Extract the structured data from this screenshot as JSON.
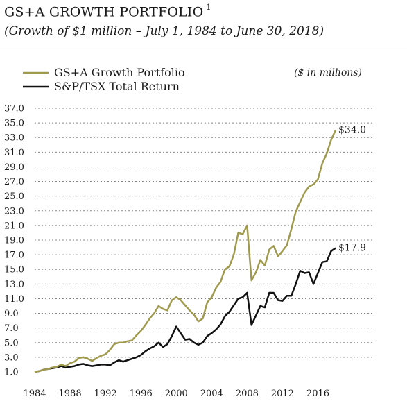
{
  "colors": {
    "portfolio": "#a09a4e",
    "index": "#111111",
    "grid": "#888888"
  },
  "chart_data": {
    "type": "line",
    "title": "GS+A GROWTH PORTFOLIO",
    "title_footnote": "1",
    "subtitle": "(Growth of $1 million – July 1, 1984 to June 30, 2018)",
    "units_label": "($ in millions)",
    "xlabel": "",
    "ylabel": "",
    "xlim": [
      1984.0,
      2018.0
    ],
    "ylim": [
      1.0,
      37.0
    ],
    "grid": true,
    "legend_position": "top-left",
    "x_ticks": [
      {
        "value": 1984,
        "label": "1984"
      },
      {
        "value": 1988,
        "label": "1988"
      },
      {
        "value": 1992,
        "label": "1992"
      },
      {
        "value": 1996,
        "label": "1996"
      },
      {
        "value": 2000,
        "label": "2000"
      },
      {
        "value": 2004,
        "label": "2004"
      },
      {
        "value": 2008,
        "label": "2008"
      },
      {
        "value": 2012,
        "label": "2012"
      },
      {
        "value": 2016,
        "label": "2016"
      }
    ],
    "y_ticks": [
      {
        "value": 1.0,
        "label": "1.0"
      },
      {
        "value": 3.0,
        "label": "3.0"
      },
      {
        "value": 5.0,
        "label": "5.0"
      },
      {
        "value": 7.0,
        "label": "7.0"
      },
      {
        "value": 9.0,
        "label": "9.0"
      },
      {
        "value": 11.0,
        "label": "11.0"
      },
      {
        "value": 13.0,
        "label": "13.0"
      },
      {
        "value": 15.0,
        "label": "15.0"
      },
      {
        "value": 17.0,
        "label": "17.0"
      },
      {
        "value": 19.0,
        "label": "19.0"
      },
      {
        "value": 21.0,
        "label": "21.0"
      },
      {
        "value": 23.0,
        "label": "23.0"
      },
      {
        "value": 25.0,
        "label": "25.0"
      },
      {
        "value": 27.0,
        "label": "27.0"
      },
      {
        "value": 29.0,
        "label": "29.0"
      },
      {
        "value": 31.0,
        "label": "31.0"
      },
      {
        "value": 33.0,
        "label": "33.0"
      },
      {
        "value": 35.0,
        "label": "35.0"
      },
      {
        "value": 37.0,
        "label": "37.0"
      }
    ],
    "series": [
      {
        "name": "GS+A Growth Portfolio",
        "color": "#a09a4e",
        "end_label": "$34.0",
        "points": [
          [
            1984.0,
            1.0
          ],
          [
            1984.5,
            1.1
          ],
          [
            1985.0,
            1.3
          ],
          [
            1985.5,
            1.4
          ],
          [
            1986.0,
            1.6
          ],
          [
            1986.5,
            1.7
          ],
          [
            1987.0,
            2.0
          ],
          [
            1987.5,
            1.8
          ],
          [
            1988.0,
            2.2
          ],
          [
            1988.5,
            2.4
          ],
          [
            1989.0,
            2.9
          ],
          [
            1989.5,
            3.0
          ],
          [
            1990.0,
            2.8
          ],
          [
            1990.5,
            2.5
          ],
          [
            1991.0,
            2.9
          ],
          [
            1991.5,
            3.2
          ],
          [
            1992.0,
            3.4
          ],
          [
            1992.5,
            4.0
          ],
          [
            1993.0,
            4.8
          ],
          [
            1993.5,
            5.0
          ],
          [
            1994.0,
            5.0
          ],
          [
            1994.5,
            5.2
          ],
          [
            1995.0,
            5.3
          ],
          [
            1995.5,
            6.0
          ],
          [
            1996.0,
            6.6
          ],
          [
            1996.5,
            7.4
          ],
          [
            1997.0,
            8.3
          ],
          [
            1997.5,
            9.0
          ],
          [
            1998.0,
            10.0
          ],
          [
            1998.5,
            9.6
          ],
          [
            1999.0,
            9.4
          ],
          [
            1999.5,
            10.8
          ],
          [
            2000.0,
            11.2
          ],
          [
            2000.5,
            10.8
          ],
          [
            2001.0,
            10.1
          ],
          [
            2001.5,
            9.4
          ],
          [
            2002.0,
            8.8
          ],
          [
            2002.5,
            7.9
          ],
          [
            2003.0,
            8.3
          ],
          [
            2003.5,
            10.5
          ],
          [
            2004.0,
            11.2
          ],
          [
            2004.5,
            12.5
          ],
          [
            2005.0,
            13.3
          ],
          [
            2005.5,
            15.0
          ],
          [
            2006.0,
            15.4
          ],
          [
            2006.5,
            17.0
          ],
          [
            2007.0,
            20.0
          ],
          [
            2007.5,
            19.8
          ],
          [
            2008.0,
            21.0
          ],
          [
            2008.5,
            13.5
          ],
          [
            2009.0,
            14.6
          ],
          [
            2009.5,
            16.3
          ],
          [
            2010.0,
            15.5
          ],
          [
            2010.5,
            17.7
          ],
          [
            2011.0,
            18.2
          ],
          [
            2011.5,
            16.8
          ],
          [
            2012.0,
            17.5
          ],
          [
            2012.5,
            18.3
          ],
          [
            2013.0,
            20.5
          ],
          [
            2013.5,
            22.9
          ],
          [
            2014.0,
            24.2
          ],
          [
            2014.5,
            25.5
          ],
          [
            2015.0,
            26.3
          ],
          [
            2015.5,
            26.6
          ],
          [
            2016.0,
            27.3
          ],
          [
            2016.5,
            29.5
          ],
          [
            2017.0,
            30.8
          ],
          [
            2017.5,
            32.7
          ],
          [
            2018.0,
            34.0
          ]
        ]
      },
      {
        "name": "S&P/TSX Total Return",
        "color": "#111111",
        "end_label": "$17.9",
        "points": [
          [
            1984.0,
            1.0
          ],
          [
            1984.5,
            1.1
          ],
          [
            1985.0,
            1.3
          ],
          [
            1985.5,
            1.4
          ],
          [
            1986.0,
            1.5
          ],
          [
            1986.5,
            1.6
          ],
          [
            1987.0,
            1.8
          ],
          [
            1987.5,
            1.6
          ],
          [
            1988.0,
            1.7
          ],
          [
            1988.5,
            1.8
          ],
          [
            1989.0,
            2.0
          ],
          [
            1989.5,
            2.1
          ],
          [
            1990.0,
            1.9
          ],
          [
            1990.5,
            1.8
          ],
          [
            1991.0,
            1.9
          ],
          [
            1991.5,
            2.0
          ],
          [
            1992.0,
            2.0
          ],
          [
            1992.5,
            1.9
          ],
          [
            1993.0,
            2.3
          ],
          [
            1993.5,
            2.6
          ],
          [
            1994.0,
            2.4
          ],
          [
            1994.5,
            2.6
          ],
          [
            1995.0,
            2.8
          ],
          [
            1995.5,
            3.0
          ],
          [
            1996.0,
            3.3
          ],
          [
            1996.5,
            3.8
          ],
          [
            1997.0,
            4.2
          ],
          [
            1997.5,
            4.5
          ],
          [
            1998.0,
            5.0
          ],
          [
            1998.5,
            4.4
          ],
          [
            1999.0,
            4.8
          ],
          [
            1999.5,
            5.9
          ],
          [
            2000.0,
            7.2
          ],
          [
            2000.5,
            6.3
          ],
          [
            2001.0,
            5.4
          ],
          [
            2001.5,
            5.5
          ],
          [
            2002.0,
            5.0
          ],
          [
            2002.5,
            4.7
          ],
          [
            2003.0,
            5.0
          ],
          [
            2003.5,
            5.9
          ],
          [
            2004.0,
            6.3
          ],
          [
            2004.5,
            6.8
          ],
          [
            2005.0,
            7.5
          ],
          [
            2005.5,
            8.6
          ],
          [
            2006.0,
            9.2
          ],
          [
            2006.5,
            10.1
          ],
          [
            2007.0,
            11.0
          ],
          [
            2007.5,
            11.2
          ],
          [
            2008.0,
            11.8
          ],
          [
            2008.5,
            7.4
          ],
          [
            2009.0,
            8.7
          ],
          [
            2009.5,
            10.0
          ],
          [
            2010.0,
            9.8
          ],
          [
            2010.5,
            11.8
          ],
          [
            2011.0,
            11.8
          ],
          [
            2011.5,
            10.8
          ],
          [
            2012.0,
            10.7
          ],
          [
            2012.5,
            11.4
          ],
          [
            2013.0,
            11.4
          ],
          [
            2013.5,
            13.0
          ],
          [
            2014.0,
            14.8
          ],
          [
            2014.5,
            14.5
          ],
          [
            2015.0,
            14.6
          ],
          [
            2015.5,
            13.0
          ],
          [
            2016.0,
            14.5
          ],
          [
            2016.5,
            16.0
          ],
          [
            2017.0,
            16.1
          ],
          [
            2017.5,
            17.5
          ],
          [
            2018.0,
            17.9
          ]
        ]
      }
    ]
  }
}
